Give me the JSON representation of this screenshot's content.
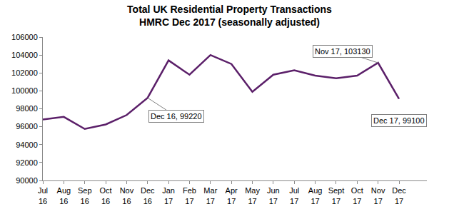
{
  "chart_data": {
    "type": "line",
    "title": "Total UK Residential Property Transactions",
    "subtitle": "HMRC Dec 2017 (seasonally adjusted)",
    "categories": [
      "Jul 16",
      "Aug 16",
      "Sep 16",
      "Oct 16",
      "Nov 16",
      "Dec 16",
      "Jan 17",
      "Feb 17",
      "Mar 17",
      "Apr 17",
      "May 17",
      "Jun 17",
      "Jul 17",
      "Aug 17",
      "Sept 17",
      "Oct 17",
      "Nov 17",
      "Dec 17"
    ],
    "values": [
      96800,
      97100,
      95750,
      96250,
      97300,
      99220,
      103400,
      101800,
      104000,
      103000,
      99900,
      101800,
      102300,
      101700,
      101400,
      101700,
      103130,
      99100
    ],
    "color": "#5b1f69",
    "ylim": [
      90000,
      106000
    ],
    "yticks": [
      90000,
      92000,
      94000,
      96000,
      98000,
      100000,
      102000,
      104000,
      106000
    ],
    "grid": false,
    "annotations": [
      {
        "category": "Dec 16",
        "text": "Dec 16, 99220"
      },
      {
        "category": "Nov 17",
        "text": "Nov 17, 103130"
      },
      {
        "category": "Dec 17",
        "text": "Dec 17, 99100"
      }
    ]
  }
}
